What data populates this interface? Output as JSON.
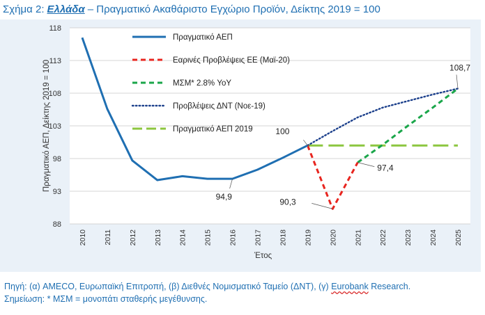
{
  "header": {
    "prefix": "Σχήμα 2:",
    "country": "Ελλάδα",
    "rest": "– Πραγματικό Ακαθάριστο Εγχώριο Προϊόν, Δείκτης 2019 = 100"
  },
  "footer": {
    "source_before": "Πηγή: (α) AMECO, Ευρωπαϊκή Επιτροπή, (β) Διεθνές Νομισματικό Ταμείο (ΔΝΤ), (γ) ",
    "source_underlined": "Eurobank",
    "source_after": " Research.",
    "note": "Σημείωση: * ΜΣΜ = μονοπάτι σταθερής μεγέθυνσης."
  },
  "colors": {
    "actual": "#1f6fb2",
    "ec_forecast": "#e8251f",
    "msm": "#1aa64a",
    "imf": "#1b3f8b",
    "gdp2019": "#8cc63f",
    "plot_bg": "#ffffff",
    "panel_bg": "#eaf1f8",
    "grid": "#c9c9c9"
  },
  "chart_data": {
    "type": "line",
    "xlabel": "Έτος",
    "ylabel": "Πραγματικό ΑΕΠ, Δείκτης 2019 = 100",
    "ylim": [
      88,
      118
    ],
    "yticks": [
      "118",
      "113",
      "108",
      "103",
      "98",
      "93",
      "88"
    ],
    "ytick_values": [
      118,
      113,
      108,
      103,
      98,
      93,
      88
    ],
    "categories": [
      "2010",
      "2011",
      "2012",
      "2013",
      "2014",
      "2015",
      "2016",
      "2017",
      "2018",
      "2019",
      "2020",
      "2021",
      "2022",
      "2023",
      "2024",
      "2025"
    ],
    "grid": "horizontal",
    "legend_position": "top-center",
    "series": [
      {
        "name": "Πραγματικό ΑΕΠ",
        "style": "solid",
        "color_key": "actual",
        "x": [
          "2010",
          "2011",
          "2012",
          "2013",
          "2014",
          "2015",
          "2016",
          "2017",
          "2018",
          "2019"
        ],
        "values": [
          116.5,
          105.6,
          97.7,
          94.7,
          95.3,
          94.9,
          94.9,
          96.3,
          98.1,
          100
        ]
      },
      {
        "name": "Εαρινές Προβλέψεις ΕΕ (Μαϊ-20)",
        "style": "dashed",
        "color_key": "ec_forecast",
        "x": [
          "2019",
          "2020",
          "2021"
        ],
        "values": [
          100,
          90.3,
          97.4
        ]
      },
      {
        "name": "ΜΣΜ* 2.8% YoY",
        "style": "dashed",
        "color_key": "msm",
        "x": [
          "2021",
          "2022",
          "2023",
          "2024",
          "2025"
        ],
        "values": [
          97.4,
          100.1,
          103.0,
          105.8,
          108.7
        ]
      },
      {
        "name": "Προβλέψεις ΔΝΤ (Noε-19)",
        "style": "dotted",
        "color_key": "imf",
        "x": [
          "2019",
          "2020",
          "2021",
          "2022",
          "2023",
          "2024",
          "2025"
        ],
        "values": [
          100,
          102.2,
          104.3,
          105.8,
          106.8,
          107.8,
          108.7
        ]
      },
      {
        "name": "Πραγματικό ΑΕΠ 2019",
        "style": "longdash",
        "color_key": "gdp2019",
        "x": [
          "2019",
          "2020",
          "2021",
          "2022",
          "2023",
          "2024",
          "2025"
        ],
        "values": [
          100,
          100,
          100,
          100,
          100,
          100,
          100
        ]
      }
    ],
    "annotations": [
      {
        "text": "100",
        "x": "2019",
        "y": 100
      },
      {
        "text": "90,3",
        "x": "2020",
        "y": 90.3
      },
      {
        "text": "97,4",
        "x": "2021",
        "y": 97.4
      },
      {
        "text": "94,9",
        "x": "2016",
        "y": 94.9
      },
      {
        "text": "108,7",
        "x": "2025",
        "y": 108.7
      }
    ]
  }
}
